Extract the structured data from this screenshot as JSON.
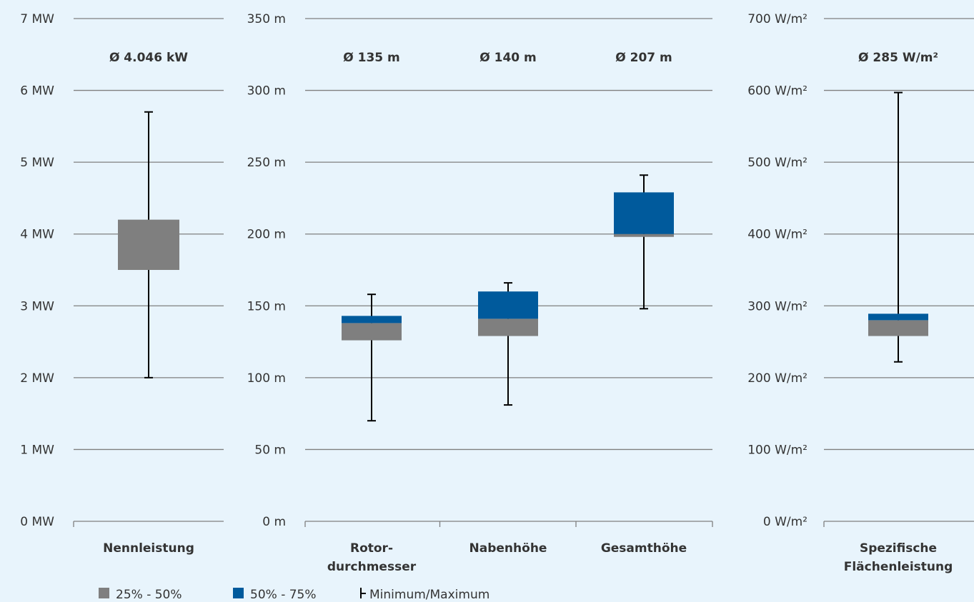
{
  "chart_data": [
    {
      "type": "box",
      "unit_label": "MW",
      "y_ticks": [
        "0 MW",
        "1 MW",
        "2 MW",
        "3 MW",
        "4 MW",
        "5 MW",
        "6 MW",
        "7 MW"
      ],
      "ylim": [
        0,
        7
      ],
      "categories": [
        {
          "label": [
            "Nennleistung"
          ],
          "average_label": "Ø 4.046 kW",
          "min": 2.0,
          "q1": 3.5,
          "median": 4.2,
          "q3": 4.2,
          "max": 5.7
        }
      ]
    },
    {
      "type": "box",
      "unit_label": "m",
      "y_ticks": [
        "0 m",
        "50 m",
        "100 m",
        "150 m",
        "200 m",
        "250 m",
        "300 m",
        "350 m"
      ],
      "ylim": [
        0,
        350
      ],
      "categories": [
        {
          "label": [
            "Rotor-",
            "durchmesser"
          ],
          "average_label": "Ø 135 m",
          "min": 70,
          "q1": 126,
          "median": 138,
          "q3": 143,
          "max": 158
        },
        {
          "label": [
            "Nabenhöhe"
          ],
          "average_label": "Ø 140 m",
          "min": 81,
          "q1": 129,
          "median": 141,
          "q3": 160,
          "max": 166
        },
        {
          "label": [
            "Gesamthöhe"
          ],
          "average_label": "Ø 207 m",
          "min": 148,
          "q1": 198,
          "median": 200,
          "q3": 229,
          "max": 241
        }
      ]
    },
    {
      "type": "box",
      "unit_label": "W/m²",
      "y_ticks": [
        "0 W/m²",
        "100 W/m²",
        "200 W/m²",
        "300 W/m²",
        "400 W/m²",
        "500 W/m²",
        "600 W/m²",
        "700 W/m²"
      ],
      "ylim": [
        0,
        700
      ],
      "categories": [
        {
          "label": [
            "Spezifische",
            "Flächenleistung"
          ],
          "average_label": "Ø 285 W/m²",
          "min": 222,
          "q1": 258,
          "median": 280,
          "q3": 289,
          "max": 597
        }
      ]
    }
  ],
  "legend": [
    {
      "label": "25% - 50%",
      "color": "#7f7f7f",
      "icon": "gray-square"
    },
    {
      "label": "50% - 75%",
      "color": "#005a9c",
      "icon": "blue-square"
    },
    {
      "label": "Minimum/Maximum",
      "color": "#000000",
      "icon": "whisker-glyph"
    }
  ],
  "colors": {
    "background": "#e8f4fc",
    "grid": "#7f7f7f",
    "lower_box": "#7f7f7f",
    "upper_box": "#005a9c",
    "whisker": "#000000"
  }
}
